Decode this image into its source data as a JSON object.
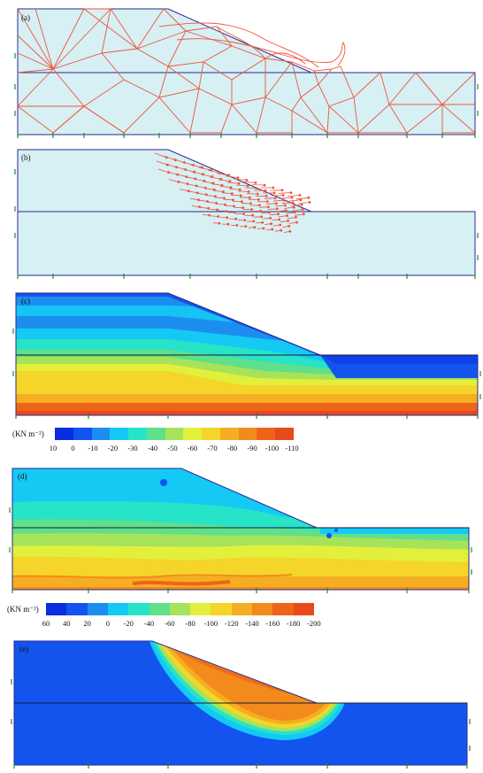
{
  "panels": {
    "a": {
      "label": "(a)"
    },
    "b": {
      "label": "(b)"
    },
    "c": {
      "label": "(c)"
    },
    "d": {
      "label": "(d)"
    },
    "e": {
      "label": "(e)"
    }
  },
  "colorbar_c": {
    "unit": "(KN m⁻²)",
    "ticks": [
      "10",
      "0",
      "-10",
      "-20",
      "-30",
      "-40",
      "-50",
      "-60",
      "-70",
      "-80",
      "-90",
      "-100",
      "-110"
    ],
    "colors": [
      "#0b2de0",
      "#1354ee",
      "#1e8df0",
      "#14c9f4",
      "#27e3c8",
      "#5fe08a",
      "#a6e35a",
      "#e2f03c",
      "#f5d52a",
      "#f5ae22",
      "#f38a1c",
      "#ee6419",
      "#e84a1c"
    ]
  },
  "colorbar_d": {
    "unit": "(KN m⁻²)",
    "ticks": [
      "60",
      "40",
      "20",
      "0",
      "-20",
      "-40",
      "-60",
      "-80",
      "-100",
      "-120",
      "-140",
      "-160",
      "-180",
      "-200"
    ],
    "colors": [
      "#0b2de0",
      "#1354ee",
      "#1e8df0",
      "#14c9f4",
      "#27e3c8",
      "#5fe08a",
      "#a6e35a",
      "#e2f03c",
      "#f5d52a",
      "#f5ae22",
      "#f38a1c",
      "#ee6419",
      "#e84a1c"
    ]
  },
  "colors": {
    "soil_fill": "#d6f0f4",
    "boundary": "#2a2a8c",
    "mesh": "#f0533a",
    "support": "#1f8a2a"
  }
}
